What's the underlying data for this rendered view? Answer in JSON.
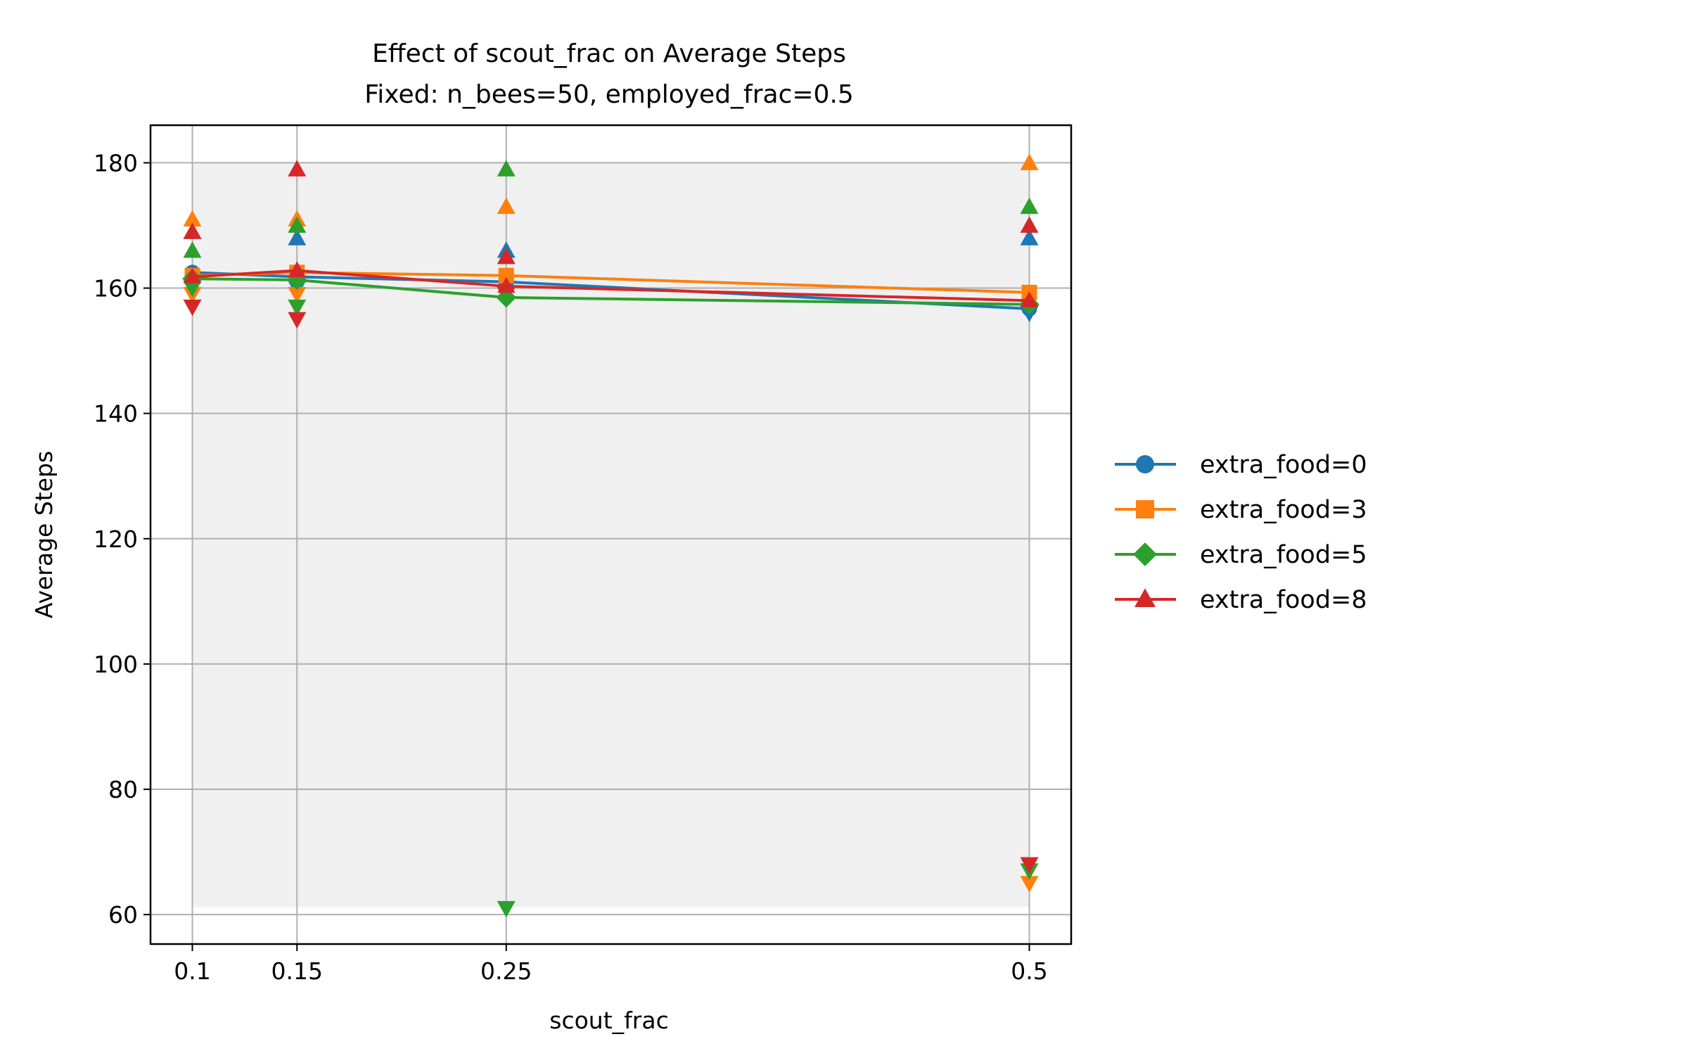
{
  "chart_data": {
    "type": "line",
    "title": "Effect of scout_frac on Average Steps",
    "subtitle": "Fixed: n_bees=50, employed_frac=0.5",
    "xlabel": "scout_frac",
    "ylabel": "Average Steps",
    "x": [
      0.1,
      0.15,
      0.25,
      0.5
    ],
    "x_tick_labels": [
      "0.1",
      "0.15",
      "0.25",
      "0.5"
    ],
    "y_ticks": [
      60,
      80,
      100,
      120,
      140,
      160,
      180
    ],
    "xlim": [
      0.08,
      0.52
    ],
    "ylim": [
      55.3,
      186
    ],
    "grid": true,
    "legend_position": "center-right-outside",
    "range_band": {
      "min": 61.2,
      "max": 180,
      "color": "#f0f0f0"
    },
    "series": [
      {
        "name": "extra_food=0",
        "color": "#1f77b4",
        "marker": "circle",
        "values": [
          162.5,
          161.8,
          161.0,
          156.7
        ],
        "max": [
          169.0,
          168.0,
          166.0,
          168.0
        ],
        "min": [
          160.0,
          160.0,
          160.0,
          156.0
        ]
      },
      {
        "name": "extra_food=3",
        "color": "#ff7f0e",
        "marker": "square",
        "values": [
          162.0,
          162.5,
          162.0,
          159.3
        ],
        "max": [
          171.0,
          171.0,
          173.0,
          180.0
        ],
        "min": [
          159.0,
          159.0,
          159.0,
          65.0
        ]
      },
      {
        "name": "extra_food=5",
        "color": "#2ca02c",
        "marker": "diamond",
        "values": [
          161.5,
          161.3,
          158.5,
          157.4
        ],
        "max": [
          166.0,
          170.0,
          179.0,
          173.0
        ],
        "min": [
          160.0,
          157.0,
          61.0,
          67.0
        ]
      },
      {
        "name": "extra_food=8",
        "color": "#d62728",
        "marker": "triangle",
        "values": [
          161.8,
          162.8,
          160.3,
          158.0
        ],
        "max": [
          169.0,
          179.0,
          165.0,
          170.0
        ],
        "min": [
          157.0,
          155.0,
          159.0,
          68.0
        ]
      }
    ]
  }
}
